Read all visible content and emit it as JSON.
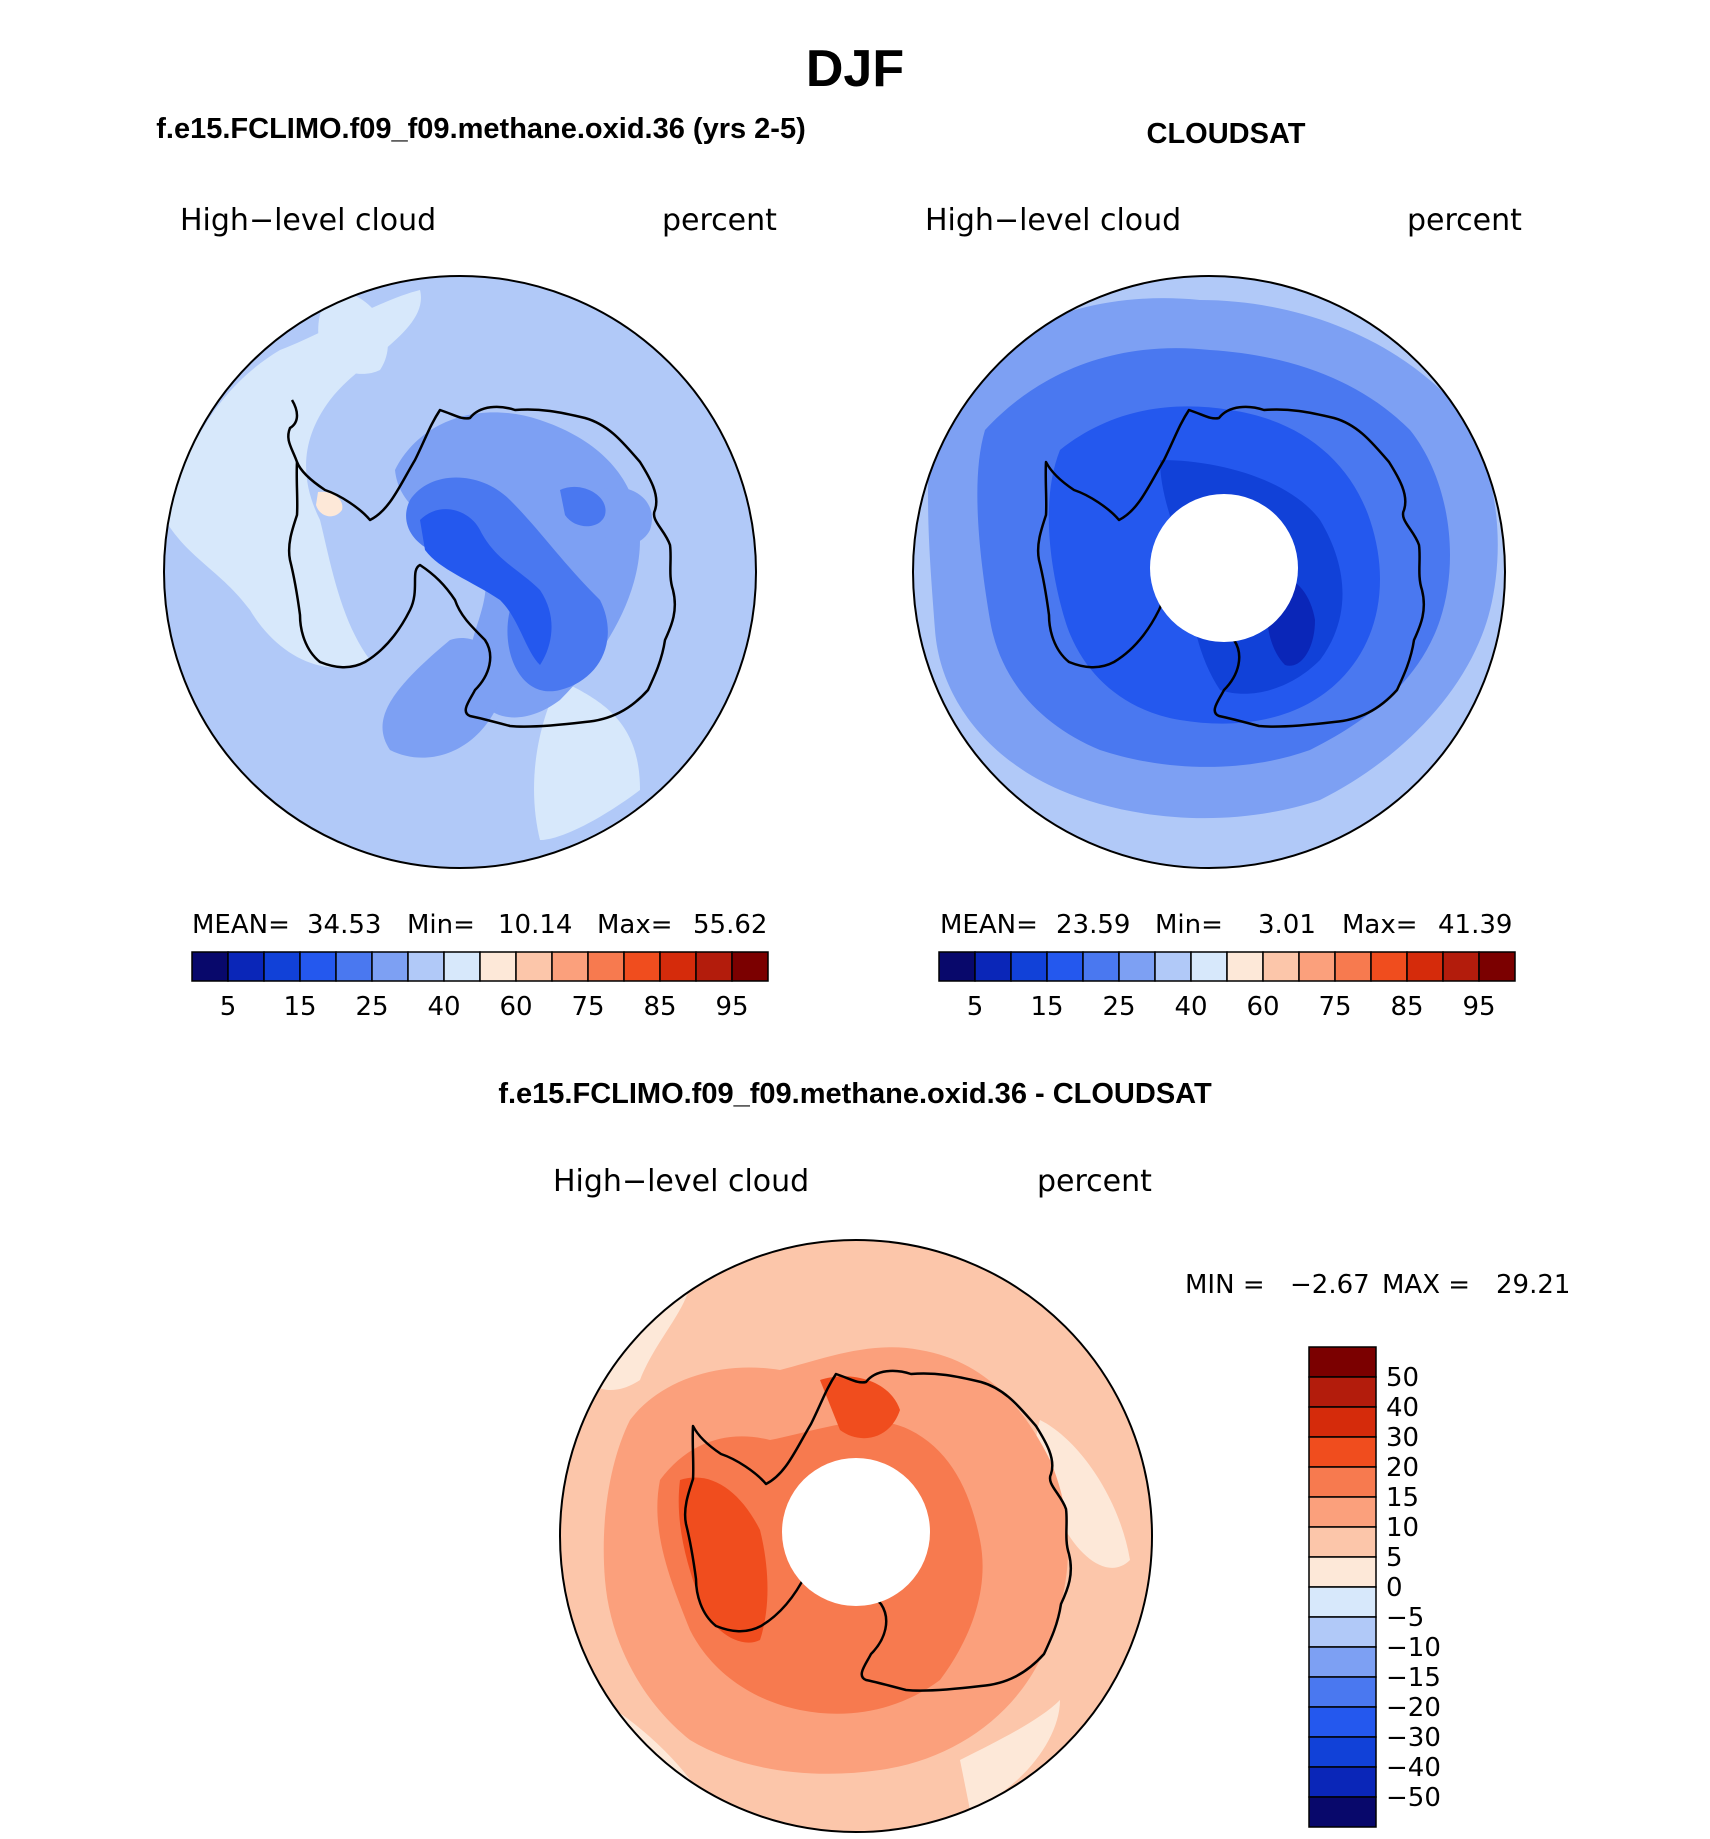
{
  "figure": {
    "title": "DJF",
    "panel_left_title": "f.e15.FCLIMO.f09_f09.methane.oxid.36 (yrs 2-5)",
    "panel_right_title": "CLOUDSAT",
    "panel_bottom_title": "f.e15.FCLIMO.f09_f09.methane.oxid.36 - CLOUDSAT"
  },
  "colors": {
    "seq_fills": [
      "#08086b",
      "#0a26b8",
      "#1141d8",
      "#2458ee",
      "#4a78f0",
      "#7da0f3",
      "#b1c9f8",
      "#d7e8fb",
      "#fde8d8",
      "#fcc6aa",
      "#fba07c",
      "#f77a4f",
      "#f04d1e",
      "#d52b0b",
      "#b31c0c",
      "#7b0000"
    ],
    "diff_fills": [
      "#08086b",
      "#0a26b8",
      "#1141d8",
      "#2458ee",
      "#4a78f0",
      "#7da0f3",
      "#b1c9f8",
      "#d7e8fb",
      "#fde8d8",
      "#fcc6aa",
      "#fba07c",
      "#f77a4f",
      "#f04d1e",
      "#d52b0b",
      "#b31c0c",
      "#7b0000"
    ]
  },
  "chart_data": [
    {
      "type": "heatmap",
      "projection": "south-polar-stereographic",
      "variable_label": "High−level cloud",
      "units_label": "percent",
      "stats": {
        "mean_label": "MEAN=",
        "mean": "34.53",
        "min_label": "Min=",
        "min": "10.14",
        "max_label": "Max=",
        "max": "55.62"
      },
      "colorbar": {
        "orientation": "horizontal",
        "levels": [
          5,
          10,
          15,
          20,
          25,
          30,
          40,
          50,
          60,
          70,
          75,
          80,
          85,
          90,
          95
        ],
        "tick_labels": [
          "5",
          "15",
          "25",
          "40",
          "60",
          "75",
          "85",
          "95"
        ]
      },
      "field": {
        "ocean_level": 7,
        "blobs": [
          {
            "lat": -87,
            "lon": -30,
            "level": 4
          },
          {
            "lat": -78,
            "lon": 20,
            "level": 5
          }
        ]
      }
    },
    {
      "type": "heatmap",
      "projection": "south-polar-stereographic",
      "variable_label": "High−level cloud",
      "units_label": "percent",
      "stats": {
        "mean_label": "MEAN=",
        "mean": "23.59",
        "min_label": "Min=",
        "min": "3.01",
        "max_label": "Max=",
        "max": "41.39"
      },
      "colorbar": {
        "orientation": "horizontal",
        "levels": [
          5,
          10,
          15,
          20,
          25,
          30,
          40,
          50,
          60,
          70,
          75,
          80,
          85,
          90,
          95
        ],
        "tick_labels": [
          "5",
          "15",
          "25",
          "40",
          "60",
          "75",
          "85",
          "95"
        ]
      },
      "missing_polar_cap": true
    },
    {
      "type": "heatmap",
      "projection": "south-polar-stereographic",
      "variable_label": "High−level cloud",
      "units_label": "percent",
      "stats": {
        "min_label": "MIN =",
        "min": "−2.67",
        "max_label": "MAX =",
        "max": "29.21"
      },
      "colorbar": {
        "orientation": "vertical",
        "levels": [
          -50,
          -40,
          -30,
          -20,
          -15,
          -10,
          -5,
          0,
          5,
          10,
          15,
          20,
          30,
          40,
          50
        ],
        "tick_labels": [
          "50",
          "40",
          "30",
          "20",
          "15",
          "10",
          "5",
          "0",
          "−5",
          "−10",
          "−15",
          "−20",
          "−30",
          "−40",
          "−50"
        ]
      },
      "missing_polar_cap": true
    }
  ]
}
